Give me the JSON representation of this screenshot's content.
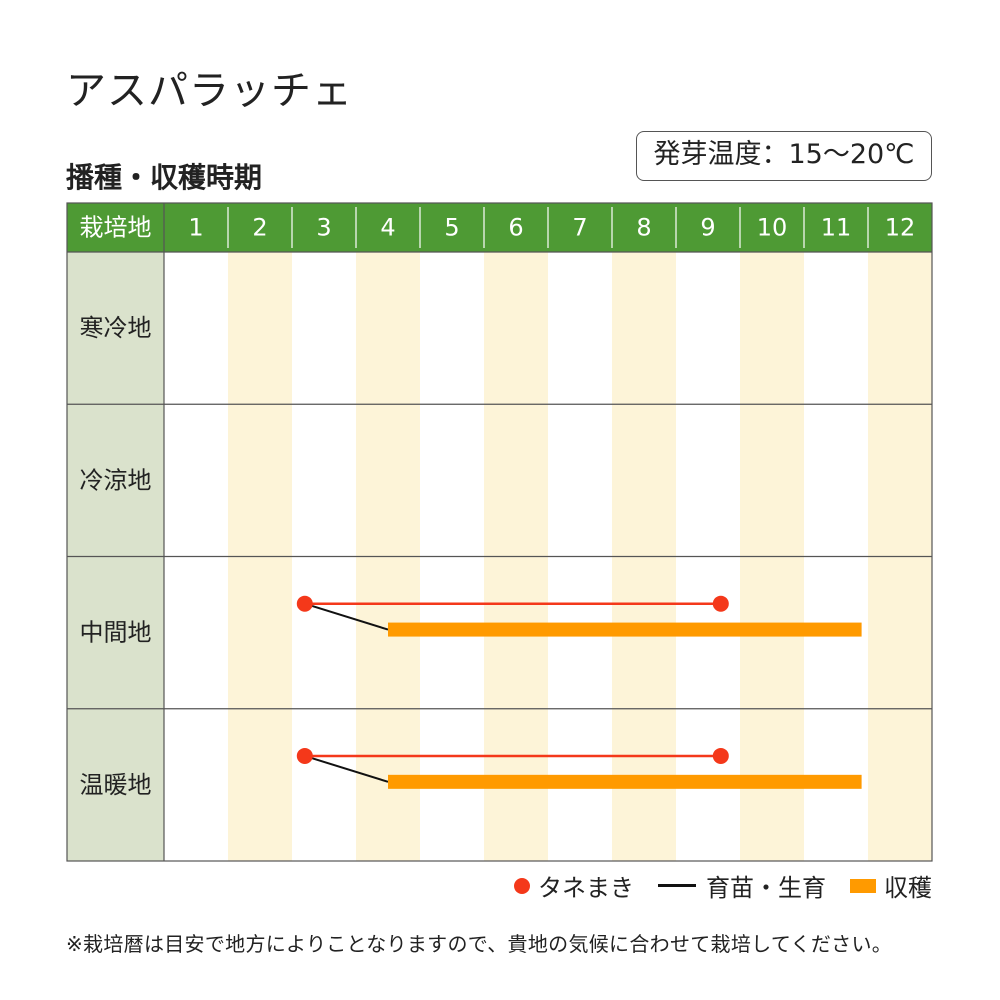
{
  "title": "アスパラッチェ",
  "subtitle": "播種・収穫時期",
  "temperature_label": "発芽温度：15〜20℃",
  "chart_data": {
    "type": "table",
    "header_label": "栽培地",
    "months": [
      "1",
      "2",
      "3",
      "4",
      "5",
      "6",
      "7",
      "8",
      "9",
      "10",
      "11",
      "12"
    ],
    "regions": [
      {
        "name": "寒冷地",
        "sowing": null,
        "harvest": null
      },
      {
        "name": "冷涼地",
        "sowing": null,
        "harvest": null
      },
      {
        "name": "中間地",
        "sowing": [
          3.2,
          9.7
        ],
        "harvest": [
          4.5,
          11.9
        ]
      },
      {
        "name": "温暖地",
        "sowing": [
          3.2,
          9.7
        ],
        "harvest": [
          4.5,
          11.9
        ]
      }
    ],
    "colors": {
      "header_bg": "#4e9a34",
      "label_bg": "#dae2cc",
      "stripe": "#fdf4d8",
      "sowing": "#f4381a",
      "nursery": "#111111",
      "harvest": "#ff9a00",
      "grid": "#555555"
    }
  },
  "legend": {
    "sowing": "タネまき",
    "nursery": "育苗・生育",
    "harvest": "収穫"
  },
  "note": "※栽培暦は目安で地方によりことなりますので、貴地の気候に合わせて栽培してください。"
}
